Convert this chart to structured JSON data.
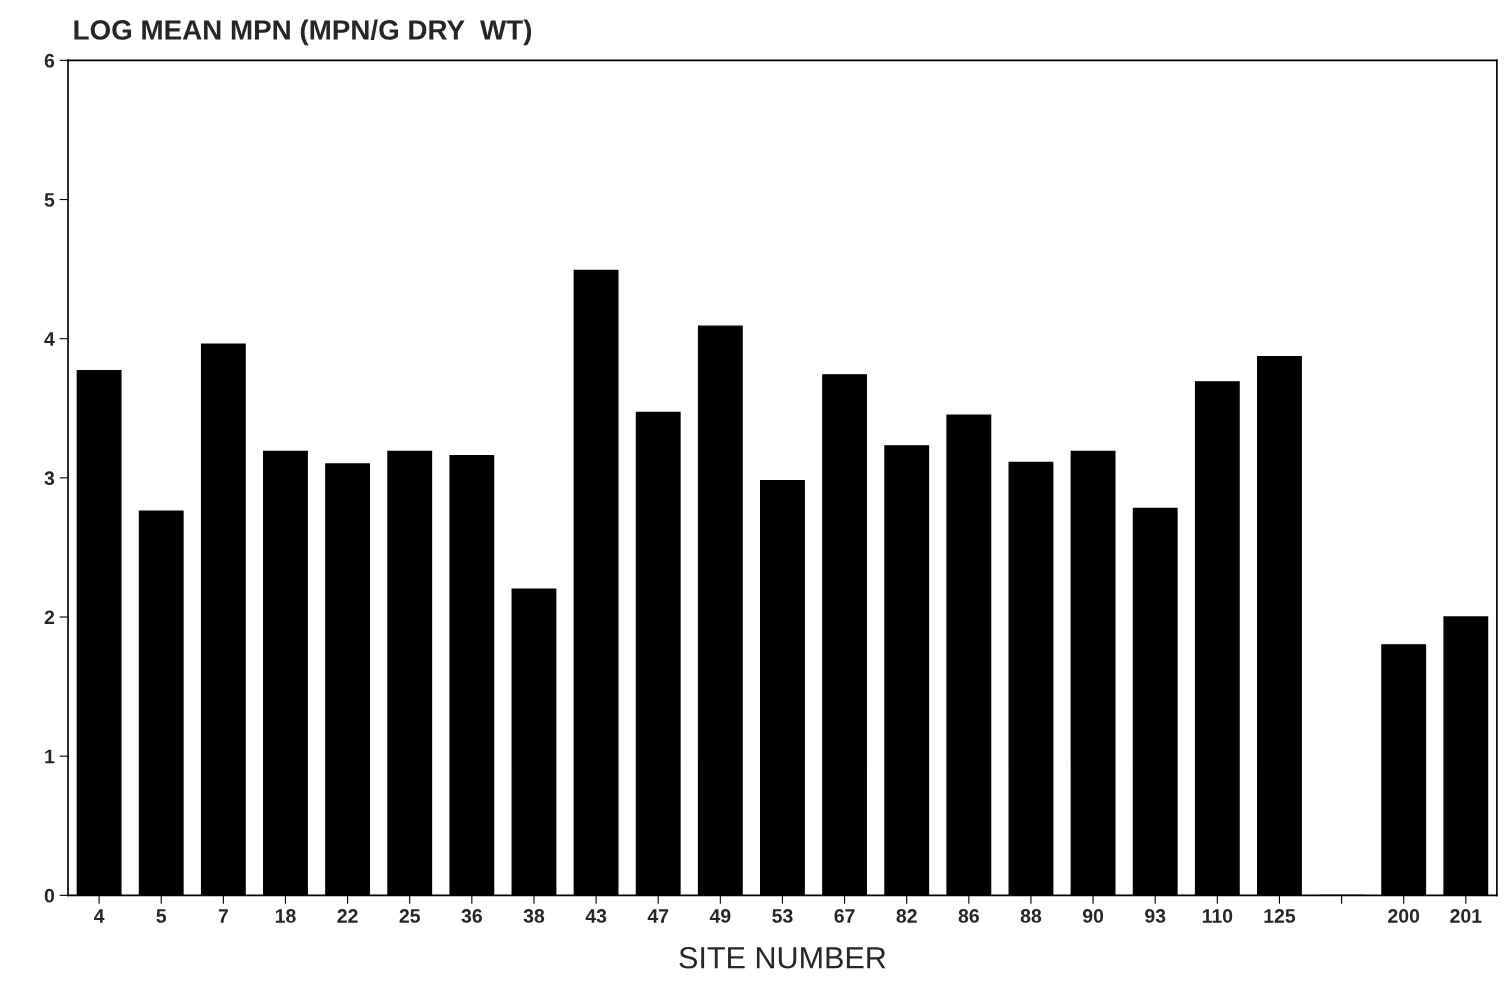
{
  "chart_data": {
    "type": "bar",
    "title": "LOG MEAN MPN (MPN/G DRY  WT)",
    "xlabel": "SITE NUMBER",
    "categories": [
      "4",
      "5",
      "7",
      "18",
      "22",
      "25",
      "36",
      "38",
      "43",
      "47",
      "49",
      "53",
      "67",
      "82",
      "86",
      "88",
      "90",
      "93",
      "110",
      "125",
      null,
      "200",
      "201"
    ],
    "values": [
      3.77,
      2.76,
      3.96,
      3.19,
      3.1,
      3.19,
      3.16,
      2.2,
      4.49,
      3.47,
      4.09,
      2.98,
      3.74,
      3.23,
      3.45,
      3.11,
      3.19,
      2.78,
      3.69,
      3.87,
      0,
      1.8,
      2.0
    ],
    "color": "#000000",
    "ylim": [
      0,
      6
    ],
    "yticks": [
      0,
      1,
      2,
      3,
      4,
      5,
      6
    ],
    "grid": false,
    "legend": false
  }
}
